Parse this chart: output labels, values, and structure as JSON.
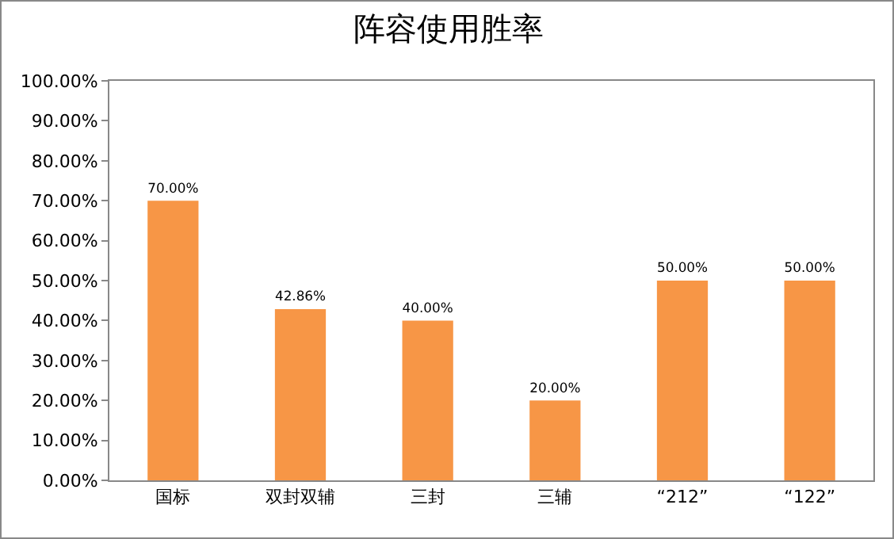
{
  "chart_data": {
    "type": "bar",
    "title": "阵容使用胜率",
    "categories": [
      "国标",
      "双封双辅",
      "三封",
      "三辅",
      "“212”",
      "“122”"
    ],
    "values": [
      70,
      42.86,
      40,
      20,
      50,
      50
    ],
    "value_labels": [
      "70.00%",
      "42.86%",
      "40.00%",
      "20.00%",
      "50.00%",
      "50.00%"
    ],
    "color": "#f79646",
    "ylim": [
      0,
      100
    ],
    "yticks": [
      {
        "value": 0,
        "label": "0.00%"
      },
      {
        "value": 10,
        "label": "10.00%"
      },
      {
        "value": 20,
        "label": "20.00%"
      },
      {
        "value": 30,
        "label": "30.00%"
      },
      {
        "value": 40,
        "label": "40.00%"
      },
      {
        "value": 50,
        "label": "50.00%"
      },
      {
        "value": 60,
        "label": "60.00%"
      },
      {
        "value": 70,
        "label": "70.00%"
      },
      {
        "value": 80,
        "label": "80.00%"
      },
      {
        "value": 90,
        "label": "90.00%"
      },
      {
        "value": 100,
        "label": "100.00%"
      }
    ],
    "grid": false
  }
}
